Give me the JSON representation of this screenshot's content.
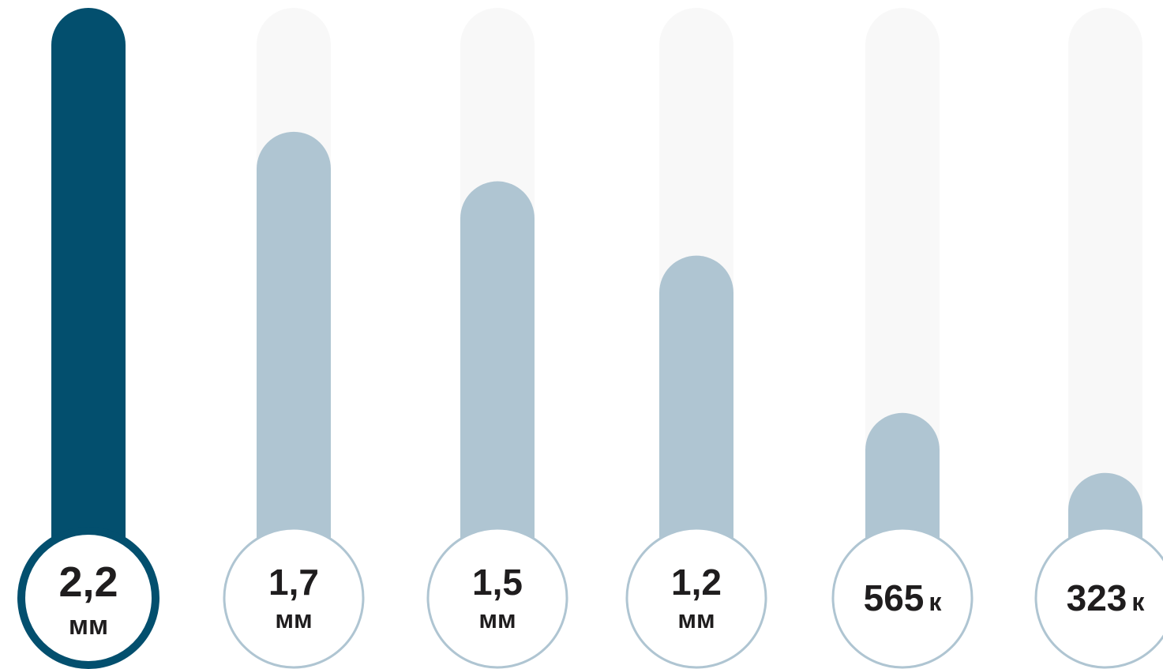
{
  "chart_data": {
    "type": "bar",
    "title": "",
    "xlabel": "",
    "ylabel": "",
    "ylim": [
      0,
      2200000
    ],
    "grid": false,
    "legend": "none",
    "values": [
      2200000,
      1700000,
      1500000,
      1200000,
      565000,
      323000
    ],
    "labels": [
      {
        "number": "2,2",
        "unit": "мм"
      },
      {
        "number": "1,7",
        "unit": "мм"
      },
      {
        "number": "1,5",
        "unit": "мм"
      },
      {
        "number": "1,2",
        "unit": "мм"
      },
      {
        "number": "565",
        "unit": "к"
      },
      {
        "number": "323",
        "unit": "к"
      }
    ],
    "highlight_index": 0
  },
  "colors": {
    "highlight": "#034f6e",
    "bar": "#afc5d2",
    "track": "#f8f8f8",
    "label_text": "#1f1d1e",
    "circle_fill": "#ffffff"
  }
}
